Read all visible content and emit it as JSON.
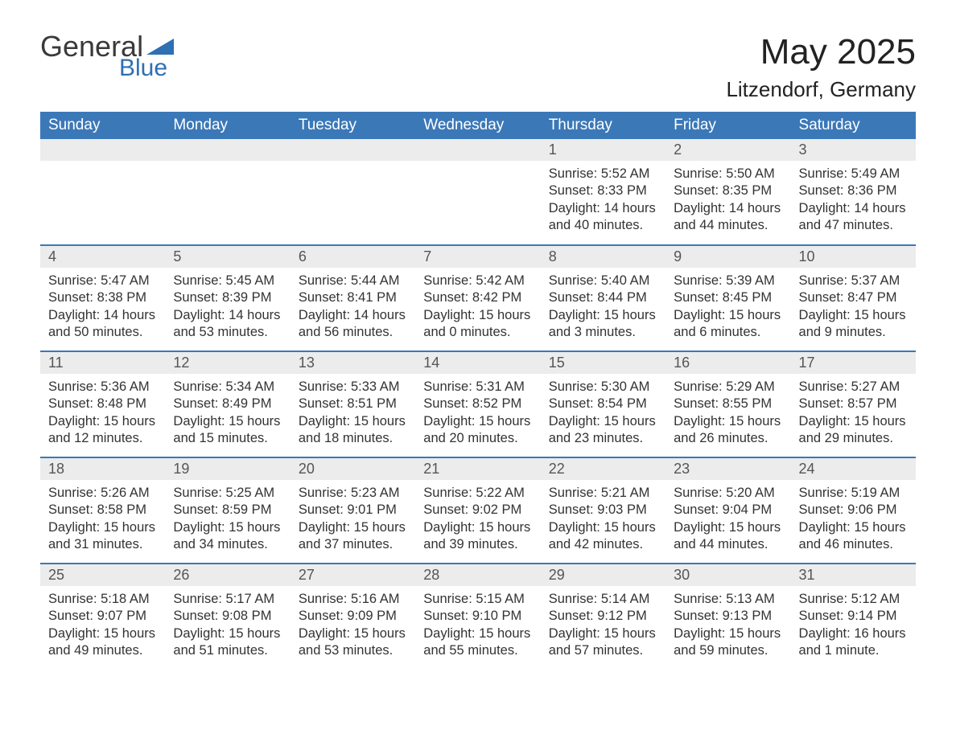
{
  "brand": {
    "text_general": "General",
    "text_blue": "Blue",
    "logo_color": "#2f6fb3"
  },
  "title": "May 2025",
  "location": "Litzendorf, Germany",
  "styling": {
    "header_bg": "#3b78b8",
    "header_text": "#ffffff",
    "daynum_bg": "#ececec",
    "daynum_text": "#555555",
    "body_text": "#333333",
    "row_divider": "#3b78b8",
    "page_bg": "#ffffff",
    "title_fontsize": 44,
    "location_fontsize": 26,
    "header_fontsize": 19,
    "cell_fontsize": 16.5
  },
  "weekdays": [
    "Sunday",
    "Monday",
    "Tuesday",
    "Wednesday",
    "Thursday",
    "Friday",
    "Saturday"
  ],
  "labels": {
    "sunrise": "Sunrise:",
    "sunset": "Sunset:",
    "daylight": "Daylight:"
  },
  "weeks": [
    [
      null,
      null,
      null,
      null,
      {
        "n": "1",
        "sunrise": "5:52 AM",
        "sunset": "8:33 PM",
        "daylight": "14 hours and 40 minutes."
      },
      {
        "n": "2",
        "sunrise": "5:50 AM",
        "sunset": "8:35 PM",
        "daylight": "14 hours and 44 minutes."
      },
      {
        "n": "3",
        "sunrise": "5:49 AM",
        "sunset": "8:36 PM",
        "daylight": "14 hours and 47 minutes."
      }
    ],
    [
      {
        "n": "4",
        "sunrise": "5:47 AM",
        "sunset": "8:38 PM",
        "daylight": "14 hours and 50 minutes."
      },
      {
        "n": "5",
        "sunrise": "5:45 AM",
        "sunset": "8:39 PM",
        "daylight": "14 hours and 53 minutes."
      },
      {
        "n": "6",
        "sunrise": "5:44 AM",
        "sunset": "8:41 PM",
        "daylight": "14 hours and 56 minutes."
      },
      {
        "n": "7",
        "sunrise": "5:42 AM",
        "sunset": "8:42 PM",
        "daylight": "15 hours and 0 minutes."
      },
      {
        "n": "8",
        "sunrise": "5:40 AM",
        "sunset": "8:44 PM",
        "daylight": "15 hours and 3 minutes."
      },
      {
        "n": "9",
        "sunrise": "5:39 AM",
        "sunset": "8:45 PM",
        "daylight": "15 hours and 6 minutes."
      },
      {
        "n": "10",
        "sunrise": "5:37 AM",
        "sunset": "8:47 PM",
        "daylight": "15 hours and 9 minutes."
      }
    ],
    [
      {
        "n": "11",
        "sunrise": "5:36 AM",
        "sunset": "8:48 PM",
        "daylight": "15 hours and 12 minutes."
      },
      {
        "n": "12",
        "sunrise": "5:34 AM",
        "sunset": "8:49 PM",
        "daylight": "15 hours and 15 minutes."
      },
      {
        "n": "13",
        "sunrise": "5:33 AM",
        "sunset": "8:51 PM",
        "daylight": "15 hours and 18 minutes."
      },
      {
        "n": "14",
        "sunrise": "5:31 AM",
        "sunset": "8:52 PM",
        "daylight": "15 hours and 20 minutes."
      },
      {
        "n": "15",
        "sunrise": "5:30 AM",
        "sunset": "8:54 PM",
        "daylight": "15 hours and 23 minutes."
      },
      {
        "n": "16",
        "sunrise": "5:29 AM",
        "sunset": "8:55 PM",
        "daylight": "15 hours and 26 minutes."
      },
      {
        "n": "17",
        "sunrise": "5:27 AM",
        "sunset": "8:57 PM",
        "daylight": "15 hours and 29 minutes."
      }
    ],
    [
      {
        "n": "18",
        "sunrise": "5:26 AM",
        "sunset": "8:58 PM",
        "daylight": "15 hours and 31 minutes."
      },
      {
        "n": "19",
        "sunrise": "5:25 AM",
        "sunset": "8:59 PM",
        "daylight": "15 hours and 34 minutes."
      },
      {
        "n": "20",
        "sunrise": "5:23 AM",
        "sunset": "9:01 PM",
        "daylight": "15 hours and 37 minutes."
      },
      {
        "n": "21",
        "sunrise": "5:22 AM",
        "sunset": "9:02 PM",
        "daylight": "15 hours and 39 minutes."
      },
      {
        "n": "22",
        "sunrise": "5:21 AM",
        "sunset": "9:03 PM",
        "daylight": "15 hours and 42 minutes."
      },
      {
        "n": "23",
        "sunrise": "5:20 AM",
        "sunset": "9:04 PM",
        "daylight": "15 hours and 44 minutes."
      },
      {
        "n": "24",
        "sunrise": "5:19 AM",
        "sunset": "9:06 PM",
        "daylight": "15 hours and 46 minutes."
      }
    ],
    [
      {
        "n": "25",
        "sunrise": "5:18 AM",
        "sunset": "9:07 PM",
        "daylight": "15 hours and 49 minutes."
      },
      {
        "n": "26",
        "sunrise": "5:17 AM",
        "sunset": "9:08 PM",
        "daylight": "15 hours and 51 minutes."
      },
      {
        "n": "27",
        "sunrise": "5:16 AM",
        "sunset": "9:09 PM",
        "daylight": "15 hours and 53 minutes."
      },
      {
        "n": "28",
        "sunrise": "5:15 AM",
        "sunset": "9:10 PM",
        "daylight": "15 hours and 55 minutes."
      },
      {
        "n": "29",
        "sunrise": "5:14 AM",
        "sunset": "9:12 PM",
        "daylight": "15 hours and 57 minutes."
      },
      {
        "n": "30",
        "sunrise": "5:13 AM",
        "sunset": "9:13 PM",
        "daylight": "15 hours and 59 minutes."
      },
      {
        "n": "31",
        "sunrise": "5:12 AM",
        "sunset": "9:14 PM",
        "daylight": "16 hours and 1 minute."
      }
    ]
  ]
}
